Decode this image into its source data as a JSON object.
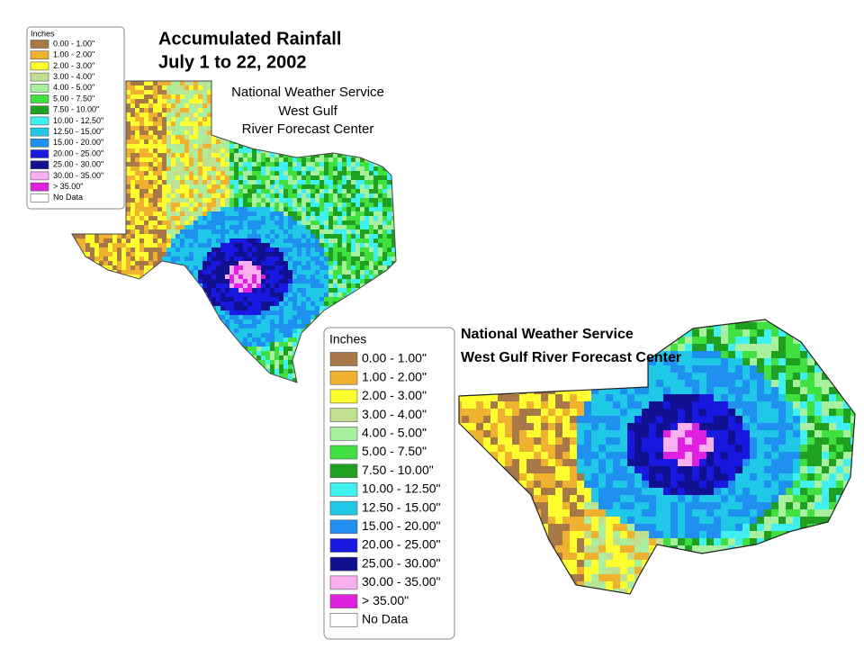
{
  "map1": {
    "title": [
      "Accumulated Rainfall",
      "July 1 to 22, 2002"
    ],
    "credit": [
      "National Weather Service",
      "West Gulf",
      "River Forecast Center"
    ]
  },
  "map2": {
    "credit": [
      "National Weather Service",
      "West Gulf River Forecast Center"
    ]
  },
  "legend": {
    "title": "Inches",
    "items": [
      {
        "label": "0.00 - 1.00\"",
        "color": "#a87848"
      },
      {
        "label": "1.00 - 2.00\"",
        "color": "#f0b030"
      },
      {
        "label": "2.00 - 3.00\"",
        "color": "#ffff30"
      },
      {
        "label": "3.00 - 4.00\"",
        "color": "#c0e090"
      },
      {
        "label": "4.00 - 5.00\"",
        "color": "#a8f0a0"
      },
      {
        "label": "5.00 - 7.50\"",
        "color": "#40e040"
      },
      {
        "label": "7.50 - 10.00\"",
        "color": "#20a020"
      },
      {
        "label": "10.00 - 12.50\"",
        "color": "#40f0f0"
      },
      {
        "label": "12.50 - 15.00\"",
        "color": "#20c8e8"
      },
      {
        "label": "15.00 - 20.00\"",
        "color": "#2090f0"
      },
      {
        "label": "20.00 - 25.00\"",
        "color": "#1818e0"
      },
      {
        "label": "25.00 - 30.00\"",
        "color": "#101090"
      },
      {
        "label": "30.00 - 35.00\"",
        "color": "#f8b0f0"
      },
      {
        "label": "> 35.00\"",
        "color": "#e020e0"
      },
      {
        "label": "No Data",
        "color": "#ffffff"
      }
    ]
  }
}
